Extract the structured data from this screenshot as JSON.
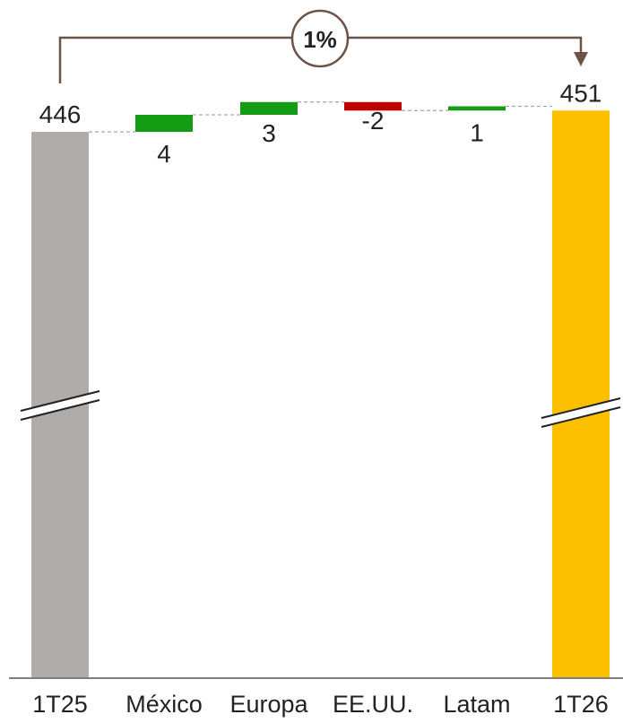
{
  "chart_data": {
    "type": "bar",
    "subtype": "waterfall",
    "categories": [
      "1T25",
      "México",
      "Europa",
      "EE.UU.",
      "Latam",
      "1T26"
    ],
    "values": [
      446,
      4,
      3,
      -2,
      1,
      451
    ],
    "value_labels": [
      "446",
      "4",
      "3",
      "-2",
      "1",
      "451"
    ],
    "bar_kinds": [
      "total",
      "delta",
      "delta",
      "delta",
      "delta",
      "total"
    ],
    "change_label": "1%",
    "axis_break": true,
    "colors": {
      "start_total": "#afaca9",
      "end_total": "#fdc000",
      "increase": "#149d14",
      "decrease": "#c00000",
      "connector": "#a6a6a6",
      "bracket": "#6b5345",
      "axis": "#7f7f7f"
    }
  }
}
